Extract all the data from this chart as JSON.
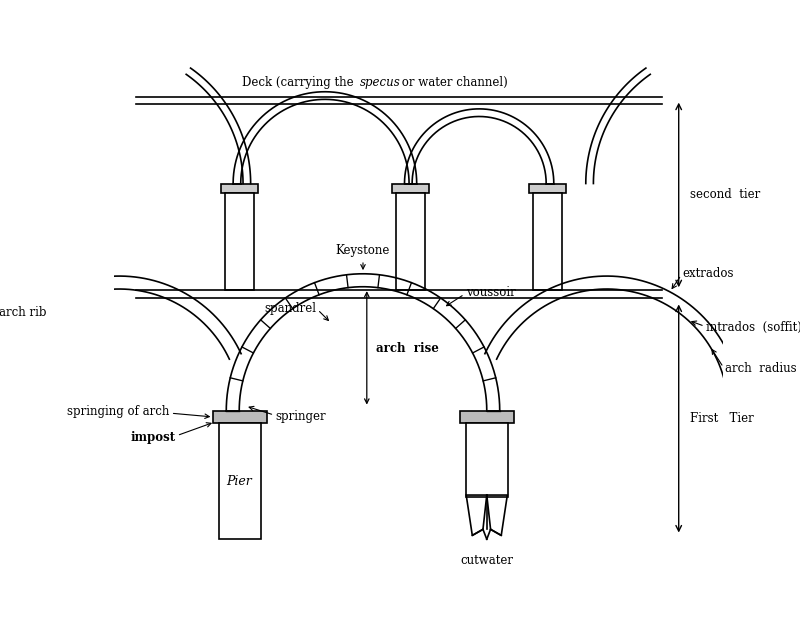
{
  "bg_color": "#ffffff",
  "line_color": "#000000",
  "deck_label_pre": "Deck (carrying the ",
  "deck_label_italic": "specus",
  "deck_label_post": " or water channel)",
  "second_tier_label": "second  tier",
  "first_tier_label": "First   Tier",
  "labels": {
    "keystone": "Keystone",
    "voussoir": "voussoir",
    "extrados": "extrados",
    "intrados": "intrados  (soffit)",
    "arch_radius": "arch  radius",
    "arch_rise": "arch  rise",
    "spandrel": "spandrel",
    "arch_rib": "arch rib",
    "springing": "springing of arch",
    "impost": "impost",
    "springer": "springer",
    "pier": "Pier",
    "cutwater": "cutwater"
  }
}
